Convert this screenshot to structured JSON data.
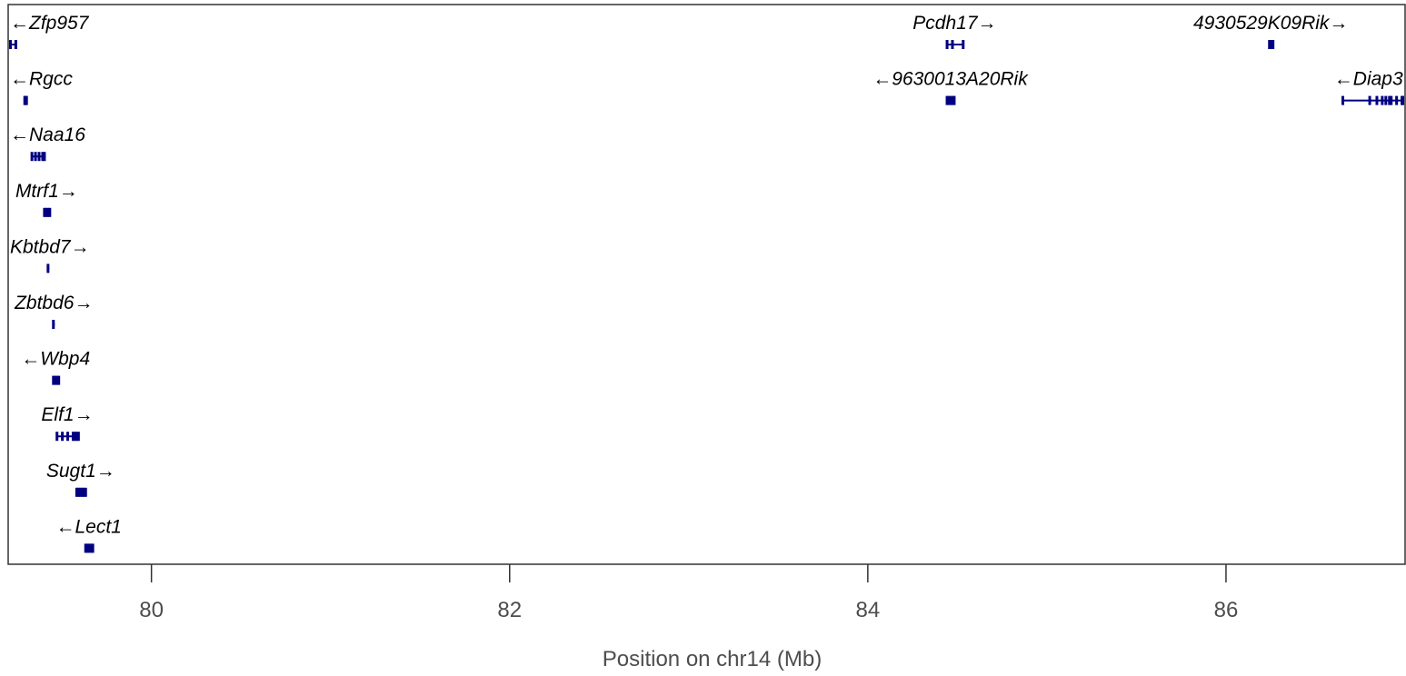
{
  "chart_data": {
    "type": "gene-track",
    "xlabel": "Position on chr14 (Mb)",
    "xlim": [
      79.2,
      87.0
    ],
    "ticks": [
      80,
      82,
      84,
      86
    ],
    "tick_labels": [
      "80",
      "82",
      "84",
      "86"
    ],
    "grid": false,
    "colors": {
      "gene": "#000080",
      "frame": "#333333",
      "text": "#000000",
      "axis_text": "#4d4d4d"
    },
    "genes": [
      {
        "name": "Zfp957",
        "strand": "-",
        "row": 1,
        "start": 79.21,
        "end": 79.24,
        "exons": [
          79.21,
          79.24
        ]
      },
      {
        "name": "Rgcc",
        "strand": "-",
        "row": 2,
        "start": 79.29,
        "end": 79.3,
        "exons": [
          79.29,
          79.295,
          79.3
        ]
      },
      {
        "name": "Naa16",
        "strand": "-",
        "row": 3,
        "start": 79.33,
        "end": 79.4,
        "exons": [
          79.33,
          79.35,
          79.37,
          79.39,
          79.4
        ]
      },
      {
        "name": "Mtrf1",
        "strand": "+",
        "row": 4,
        "start": 79.4,
        "end": 79.43,
        "exons": [
          79.4,
          79.41,
          79.42,
          79.43
        ]
      },
      {
        "name": "Kbtbd7",
        "strand": "+",
        "row": 5,
        "start": 79.42,
        "end": 79.425,
        "exons": [
          79.42
        ]
      },
      {
        "name": "Zbtbd6",
        "strand": "+",
        "row": 6,
        "start": 79.45,
        "end": 79.455,
        "exons": [
          79.45
        ]
      },
      {
        "name": "Wbp4",
        "strand": "-",
        "row": 7,
        "start": 79.45,
        "end": 79.48,
        "exons": [
          79.45,
          79.46,
          79.47,
          79.48
        ]
      },
      {
        "name": "Elf1",
        "strand": "+",
        "row": 8,
        "start": 79.47,
        "end": 79.59,
        "exons": [
          79.47,
          79.5,
          79.53,
          79.56,
          79.57,
          79.58,
          79.59
        ]
      },
      {
        "name": "Sugt1",
        "strand": "+",
        "row": 9,
        "start": 79.58,
        "end": 79.63,
        "exons": [
          79.58,
          79.59,
          79.6,
          79.61,
          79.62,
          79.63
        ]
      },
      {
        "name": "Lect1",
        "strand": "-",
        "row": 10,
        "start": 79.63,
        "end": 79.67,
        "exons": [
          79.63,
          79.64,
          79.65,
          79.66,
          79.67
        ]
      },
      {
        "name": "Pcdh17",
        "strand": "+",
        "row": 1,
        "start": 84.44,
        "end": 84.53,
        "exons": [
          84.44,
          84.47,
          84.53
        ]
      },
      {
        "name": "9630013A20Rik",
        "strand": "-",
        "row": 2,
        "start": 84.44,
        "end": 84.48,
        "exons": [
          84.44,
          84.45,
          84.46,
          84.47,
          84.48
        ]
      },
      {
        "name": "4930529K09Rik",
        "strand": "+",
        "row": 1,
        "start": 86.24,
        "end": 86.26,
        "exons": [
          86.24,
          86.25,
          86.26
        ]
      },
      {
        "name": "Diap3",
        "strand": "-",
        "row": 2,
        "start": 86.65,
        "end": 87.0,
        "exons": [
          86.65,
          86.8,
          86.84,
          86.87,
          86.89,
          86.91,
          86.92,
          86.95,
          86.98,
          86.99,
          87.0
        ]
      }
    ]
  }
}
